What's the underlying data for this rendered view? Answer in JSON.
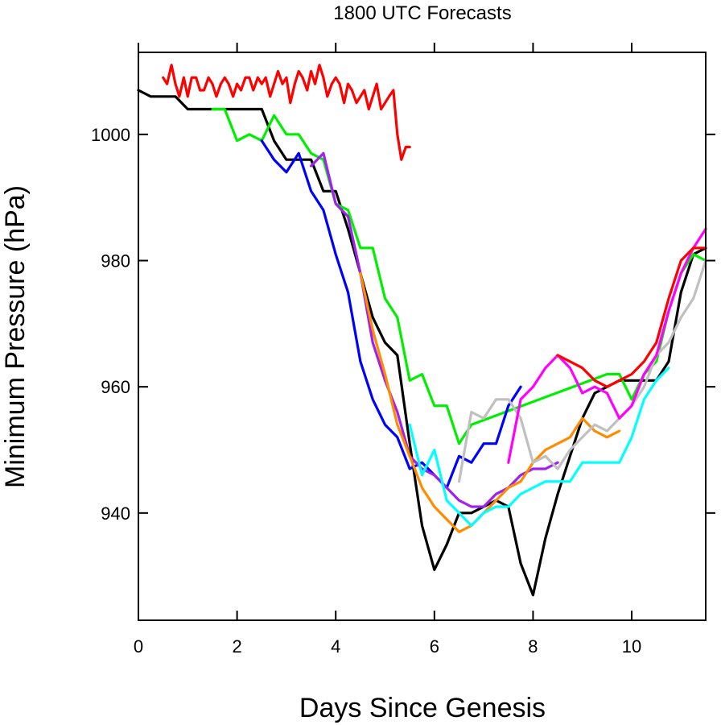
{
  "chart_data": {
    "type": "line",
    "title": "1800 UTC Forecasts",
    "xlabel": "Days Since Genesis",
    "ylabel": "Minimum Pressure (hPa)",
    "xlim": [
      0,
      11.5
    ],
    "ylim": [
      923,
      1013
    ],
    "xticks": [
      0,
      2,
      4,
      6,
      8,
      10
    ],
    "yticks": [
      940,
      960,
      980,
      1000
    ],
    "grid": false,
    "legend": "none",
    "series": [
      {
        "color": "#ff0000",
        "x": [
          0.5,
          0.58,
          0.67,
          0.75,
          0.83,
          0.92,
          1.0,
          1.08,
          1.17,
          1.25,
          1.33,
          1.42,
          1.5,
          1.58,
          1.67,
          1.75,
          1.83,
          1.92,
          2.0,
          2.08,
          2.17,
          2.25,
          2.33,
          2.42,
          2.5,
          2.58,
          2.67,
          2.75,
          2.83,
          2.92,
          3.0,
          3.08,
          3.17,
          3.25,
          3.33,
          3.42,
          3.5,
          3.58,
          3.67,
          3.75,
          3.83,
          3.92,
          4.0,
          4.08,
          4.17,
          4.25,
          4.33,
          4.42,
          4.5,
          4.58,
          4.67,
          4.75,
          4.83,
          4.92,
          5.0,
          5.08,
          5.17,
          5.25,
          5.33,
          5.42,
          5.5,
          5.58,
          5.67,
          5.75
        ],
        "y": [
          1009,
          1008,
          1011,
          1008,
          1006,
          1009,
          1006,
          1009,
          1009,
          1007,
          1007,
          1009,
          1008,
          1006,
          1008,
          1009,
          1008,
          1006,
          1008,
          1007,
          1009,
          1009,
          1007,
          1009,
          1008,
          1009,
          1006,
          1008,
          1010,
          1008,
          1009,
          1005,
          1008,
          1010,
          1009,
          1007,
          1010,
          1008,
          1011,
          1009,
          1006,
          1008,
          1009,
          1008,
          1005,
          1008,
          1007,
          1005,
          1006,
          1007,
          1004,
          1006,
          1008,
          1004,
          1005,
          1006,
          1007,
          1000,
          996,
          998,
          998,
          null,
          null,
          null
        ]
      },
      {
        "color": "#000000",
        "x": [
          0.0,
          0.25,
          0.5,
          0.75,
          1.0,
          1.25,
          1.5,
          1.75,
          2.0,
          2.25,
          2.5,
          2.75,
          3.0,
          3.25,
          3.5,
          3.75,
          4.0,
          4.25,
          4.5,
          4.75,
          5.0,
          5.25,
          5.5,
          5.75,
          6.0,
          6.25,
          6.5,
          6.75,
          7.0,
          7.25,
          7.5,
          7.75,
          8.0,
          8.25,
          8.5,
          8.75,
          9.0,
          9.25,
          9.5,
          9.75,
          10.0,
          10.25,
          10.5,
          10.75,
          11.0,
          11.25,
          11.5
        ],
        "y": [
          1007,
          1006,
          1006,
          1006,
          1004,
          1004,
          1004,
          1004,
          1004,
          1004,
          1004,
          999,
          996,
          996,
          996,
          991,
          991,
          985,
          978,
          971,
          967,
          965,
          951,
          938,
          931,
          935,
          940,
          940,
          941,
          942,
          941,
          932,
          927,
          936,
          943,
          949,
          955,
          959,
          960,
          961,
          961,
          961,
          961,
          964,
          975,
          981,
          982
        ]
      },
      {
        "color": "#00ee00",
        "x": [
          1.5,
          1.75,
          2.0,
          2.25,
          2.5,
          2.75,
          3.0,
          3.25,
          3.5,
          3.75,
          4.0,
          4.25,
          4.5,
          4.75,
          5.0,
          5.25,
          5.5,
          5.75,
          6.0,
          6.25,
          6.5,
          6.75,
          9.5,
          9.75,
          10.0,
          10.25,
          10.5,
          10.75,
          11.0,
          11.25,
          11.5
        ],
        "y": [
          1004,
          1004,
          999,
          1000,
          999,
          1003,
          1000,
          1000,
          997,
          996,
          989,
          988,
          982,
          982,
          974,
          971,
          961,
          962,
          957,
          957,
          951,
          954,
          962,
          962,
          958,
          962,
          964,
          972,
          978,
          981,
          980
        ]
      },
      {
        "color": "#0000ff",
        "x": [
          2.5,
          2.75,
          3.0,
          3.25,
          3.5,
          3.75,
          4.0,
          4.25,
          4.5,
          4.75,
          5.0,
          5.25,
          5.5,
          5.75,
          6.0,
          6.25,
          6.5,
          6.75,
          7.0,
          7.25,
          7.5,
          7.75
        ],
        "y": [
          999,
          996,
          994,
          997,
          991,
          988,
          981,
          975,
          964,
          958,
          954,
          952,
          947,
          948,
          946,
          944,
          949,
          948,
          951,
          951,
          957,
          960
        ]
      },
      {
        "color": "#a020f0",
        "x": [
          3.5,
          3.75,
          4.0,
          4.25,
          4.5,
          4.75,
          5.0,
          5.25,
          5.5,
          5.75,
          6.0,
          6.25,
          6.5,
          6.75,
          7.0,
          7.25,
          7.5,
          7.75,
          8.0,
          8.25,
          8.5
        ],
        "y": [
          995,
          997,
          989,
          987,
          978,
          967,
          961,
          956,
          949,
          947,
          946,
          944,
          942,
          941,
          941,
          943,
          944,
          946,
          947,
          947,
          948
        ]
      },
      {
        "color": "#ff8c00",
        "x": [
          4.5,
          4.75,
          5.0,
          5.25,
          5.5,
          5.75,
          6.0,
          6.25,
          6.5,
          6.75,
          7.0,
          7.25,
          7.5,
          7.75,
          8.0,
          8.25,
          8.5,
          8.75,
          9.0,
          9.25,
          9.5,
          9.75
        ],
        "y": [
          978,
          969,
          962,
          954,
          949,
          944,
          941,
          939,
          937,
          938,
          940,
          942,
          944,
          945,
          948,
          950,
          951,
          952,
          955,
          953,
          952,
          953
        ]
      },
      {
        "color": "#00ffff",
        "x": [
          5.5,
          5.75,
          6.0,
          6.25,
          6.5,
          6.75,
          7.0,
          7.25,
          7.5,
          7.75,
          8.0,
          8.25,
          8.5,
          8.75,
          9.0,
          9.25,
          9.5,
          9.75,
          10.0,
          10.25,
          10.5,
          10.75
        ],
        "y": [
          954,
          946,
          950,
          942,
          940,
          938,
          940,
          941,
          941,
          943,
          944,
          945,
          945,
          945,
          948,
          948,
          948,
          948,
          952,
          958,
          961,
          963
        ]
      },
      {
        "color": "#c0c0c0",
        "x": [
          6.5,
          6.75,
          7.0,
          7.25,
          7.5,
          7.75,
          8.0,
          8.25,
          8.5,
          8.75,
          9.0,
          9.25,
          9.5,
          9.75,
          10.0,
          10.25,
          10.5,
          10.75,
          11.0,
          11.25,
          11.5
        ],
        "y": [
          945,
          956,
          955,
          958,
          958,
          955,
          948,
          949,
          947,
          950,
          952,
          954,
          953,
          955,
          957,
          960,
          965,
          967,
          971,
          974,
          980
        ]
      },
      {
        "color": "#ff00ff",
        "x": [
          7.5,
          7.75,
          8.0,
          8.25,
          8.5,
          8.75,
          9.0,
          9.25,
          9.5,
          9.75,
          10.0,
          10.25,
          10.5,
          10.75,
          11.0,
          11.25,
          11.5
        ],
        "y": [
          948,
          958,
          960,
          963,
          965,
          963,
          959,
          960,
          959,
          955,
          957,
          962,
          965,
          972,
          978,
          982,
          985
        ]
      },
      {
        "color": "#ff0000",
        "x": [
          8.5,
          8.75,
          9.0,
          9.25,
          9.5,
          9.75,
          10.0,
          10.25,
          10.5,
          10.75,
          11.0,
          11.25,
          11.5
        ],
        "y": [
          965,
          964,
          963,
          961,
          960,
          961,
          962,
          964,
          967,
          974,
          980,
          982,
          982
        ]
      }
    ]
  }
}
